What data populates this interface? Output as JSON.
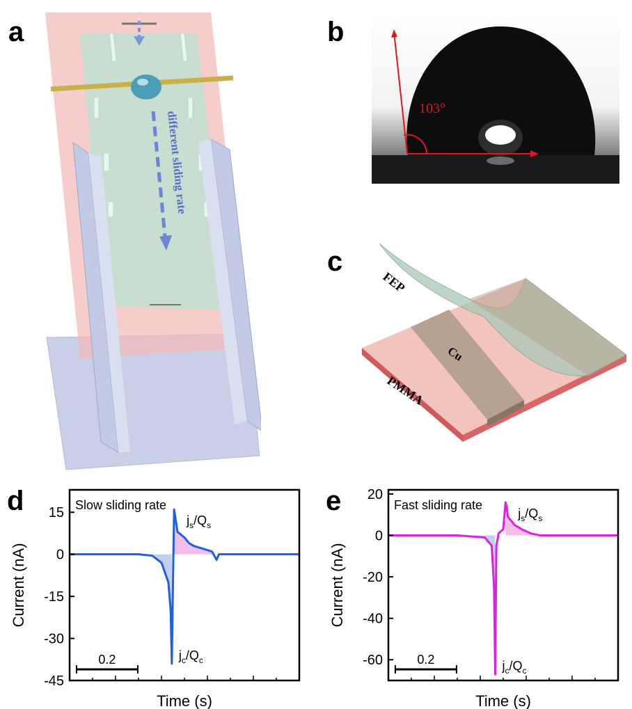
{
  "panels": {
    "a": {
      "letter": "a",
      "arrow_label": "different sliding rate"
    },
    "b": {
      "letter": "b",
      "angle_label": "103°"
    },
    "c": {
      "letter": "c",
      "layers": {
        "top": "FEP",
        "middle": "Cu",
        "bottom": "PMMA"
      }
    },
    "d": {
      "letter": "d"
    },
    "e": {
      "letter": "e"
    }
  },
  "colors": {
    "slow_series": "#1f5fe0",
    "fast_series": "#e020e0",
    "charge_fill_neg": "#b7c8ee",
    "charge_fill_pos": "#f1b2e8",
    "angle_lines": "#e8141b"
  },
  "chart_data": [
    {
      "type": "line",
      "panel": "d",
      "title": "",
      "annotation": "Slow sliding rate",
      "xlabel": "Time (s)",
      "ylabel": "Current (nA)",
      "ylim": [
        -45,
        23
      ],
      "yticks": [
        "15",
        "0",
        "-15",
        "-30",
        "-45"
      ],
      "ytick_values": [
        15,
        0,
        -15,
        -30,
        -45
      ],
      "xlim": [
        0,
        1
      ],
      "scale_bar": "0.2",
      "grid": false,
      "legend": "none",
      "peak_labels": {
        "negative": "jc/Qc",
        "positive": "js/Qs"
      },
      "series": [
        {
          "x": [
            0.0,
            0.3,
            0.36,
            0.4,
            0.43,
            0.44,
            0.445,
            0.45,
            0.455,
            0.47,
            0.5,
            0.52,
            0.54,
            0.58,
            0.62,
            0.64,
            0.65,
            0.7,
            1.0
          ],
          "y": [
            0,
            0,
            -0.5,
            -3,
            -10,
            -20,
            -39,
            -10,
            16,
            8,
            6,
            4,
            3,
            2,
            1,
            -2,
            0,
            0,
            0
          ]
        }
      ]
    },
    {
      "type": "line",
      "panel": "e",
      "title": "",
      "annotation": "Fast sliding rate",
      "xlabel": "Time (s)",
      "ylabel": "Current (nA)",
      "ylim": [
        -70,
        22
      ],
      "yticks": [
        "20",
        "0",
        "-20",
        "-40",
        "-60"
      ],
      "ytick_values": [
        20,
        0,
        -20,
        -40,
        -60
      ],
      "xlim": [
        0,
        1
      ],
      "scale_bar": "0.2",
      "grid": false,
      "legend": "none",
      "peak_labels": {
        "negative": "jc/Qc",
        "positive": "js/Qs"
      },
      "series": [
        {
          "x": [
            0.0,
            0.3,
            0.42,
            0.45,
            0.46,
            0.465,
            0.47,
            0.48,
            0.5,
            0.51,
            0.515,
            0.52,
            0.55,
            0.58,
            0.62,
            0.66,
            0.7,
            1.0
          ],
          "y": [
            0,
            0,
            -1,
            -5,
            -25,
            -67,
            -5,
            1,
            3,
            16,
            14,
            9,
            5,
            3,
            1,
            0,
            0,
            0
          ]
        }
      ]
    }
  ]
}
